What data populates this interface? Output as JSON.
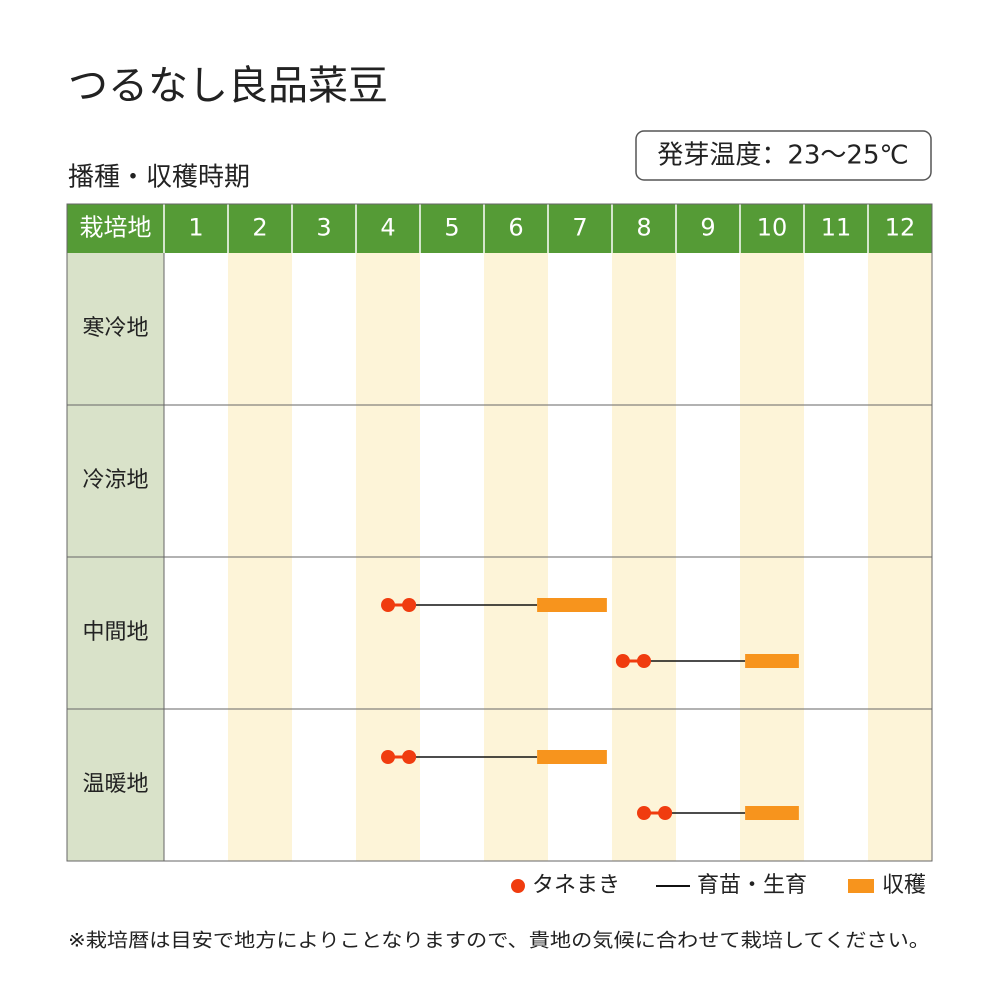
{
  "header": {
    "title": "つるなし良品菜豆",
    "subtitle": "播種・収穫時期",
    "badge": "発芽温度：23〜25℃"
  },
  "table": {
    "corner": "栽培地",
    "months": [
      "1",
      "2",
      "3",
      "4",
      "5",
      "6",
      "7",
      "8",
      "9",
      "10",
      "11",
      "12"
    ],
    "rows": [
      {
        "label": "寒冷地",
        "plans": []
      },
      {
        "label": "冷涼地",
        "plans": []
      },
      {
        "label": "中間地",
        "plans": [
          {
            "sow": [
              4.5,
              4.83
            ],
            "harvest": [
              6.83,
              7.92
            ]
          },
          {
            "sow": [
              8.17,
              8.5
            ],
            "harvest": [
              10.08,
              10.92
            ]
          }
        ]
      },
      {
        "label": "温暖地",
        "plans": [
          {
            "sow": [
              4.5,
              4.83
            ],
            "harvest": [
              6.83,
              7.92
            ]
          },
          {
            "sow": [
              8.5,
              8.83
            ],
            "harvest": [
              10.08,
              10.92
            ]
          }
        ]
      }
    ]
  },
  "legend": {
    "sow": "タネまき",
    "grow": "育苗・生育",
    "harvest": "収穫"
  },
  "footnote": "※栽培暦は目安で地方によりことなりますので、貴地の気候に合わせて栽培してください。"
}
